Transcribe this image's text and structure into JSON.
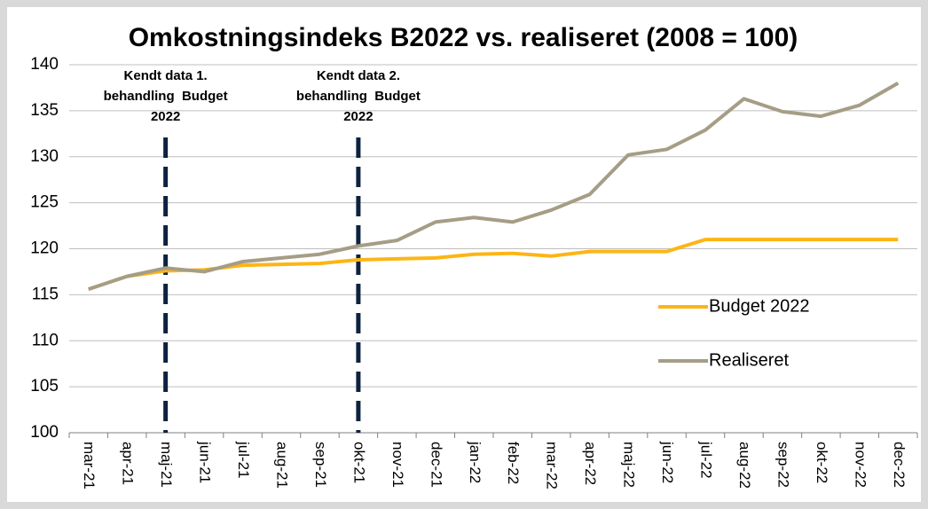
{
  "chart_data": {
    "type": "line",
    "title": "Omkostningsindeks B2022 vs. realiseret (2008 = 100)",
    "categories": [
      "mar-21",
      "apr-21",
      "maj-21",
      "jun-21",
      "jul-21",
      "aug-21",
      "sep-21",
      "okt-21",
      "nov-21",
      "dec-21",
      "jan-22",
      "feb-22",
      "mar-22",
      "apr-22",
      "maj-22",
      "jun-22",
      "jul-22",
      "aug-22",
      "sep-22",
      "okt-22",
      "nov-22",
      "dec-22"
    ],
    "series": [
      {
        "name": "Budget 2022",
        "color": "#fdb515",
        "values": [
          115.6,
          117.0,
          117.6,
          117.7,
          118.2,
          118.3,
          118.4,
          118.8,
          118.9,
          119.0,
          119.4,
          119.5,
          119.2,
          119.7,
          119.7,
          119.7,
          121.0,
          121.0,
          121.0,
          121.0,
          121.0,
          121.0
        ]
      },
      {
        "name": "Realiseret",
        "color": "#a59d85",
        "values": [
          115.6,
          117.0,
          117.9,
          117.5,
          118.6,
          119.0,
          119.4,
          120.3,
          120.9,
          122.9,
          123.4,
          122.9,
          124.2,
          125.9,
          130.2,
          130.8,
          132.9,
          136.3,
          134.9,
          134.4,
          135.6,
          138.0
        ]
      }
    ],
    "annotations": [
      {
        "at": "maj-21",
        "lines": [
          "Kendt data 1.",
          "behandling  Budget",
          "2022"
        ]
      },
      {
        "at": "okt-21",
        "lines": [
          "Kendt data 2.",
          "behandling  Budget",
          "2022"
        ]
      }
    ],
    "ylim": [
      100,
      140
    ],
    "yticks": [
      100,
      105,
      110,
      115,
      120,
      125,
      130,
      135,
      140
    ],
    "grid": true,
    "legend": "right"
  }
}
